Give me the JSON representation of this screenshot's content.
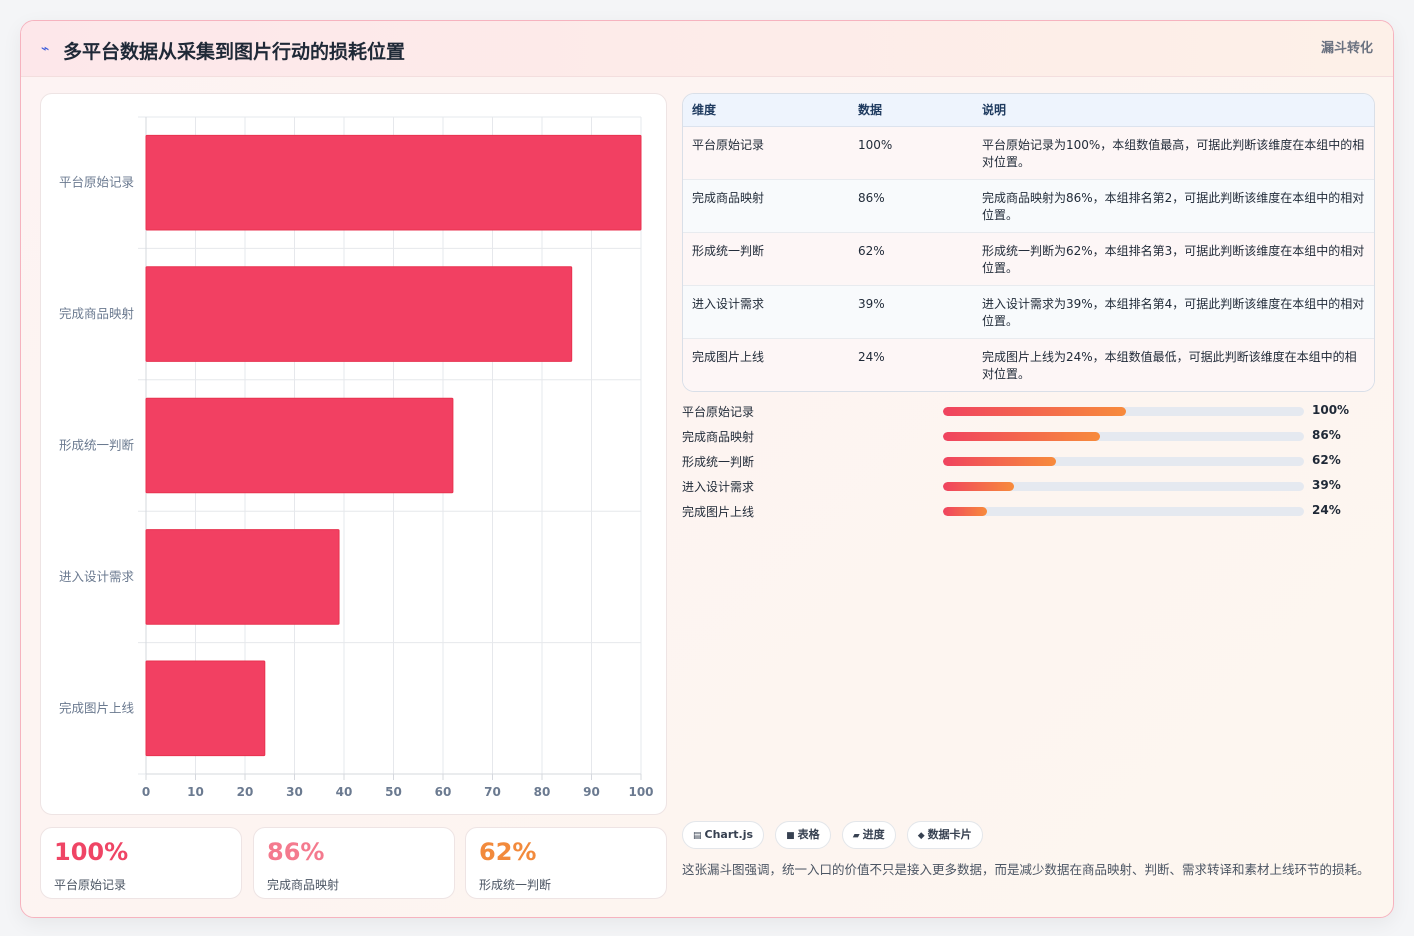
{
  "header": {
    "title": "多平台数据从采集到图片行动的损耗位置",
    "tag": "漏斗转化",
    "title_icon": "spark-icon"
  },
  "chart_data": {
    "type": "bar",
    "orientation": "horizontal",
    "categories": [
      "平台原始记录",
      "完成商品映射",
      "形成统一判断",
      "进入设计需求",
      "完成图片上线"
    ],
    "values": [
      100,
      86,
      62,
      39,
      24
    ],
    "xlim": [
      0,
      100
    ],
    "x_ticks": [
      "0",
      "10",
      "20",
      "30",
      "40",
      "50",
      "60",
      "70",
      "80",
      "90",
      "100"
    ],
    "grid": true,
    "legend": "none",
    "bar_color": "#f24062"
  },
  "stats": [
    {
      "value": "100%",
      "label": "平台原始记录",
      "color": "#ef4565"
    },
    {
      "value": "86%",
      "label": "完成商品映射",
      "color": "#f47a8e"
    },
    {
      "value": "62%",
      "label": "形成统一判断",
      "color": "#f28a3c"
    }
  ],
  "table": {
    "headers": [
      "维度",
      "数据",
      "说明"
    ],
    "rows": [
      [
        "平台原始记录",
        "100%",
        "平台原始记录为100%，本组数值最高，可据此判断该维度在本组中的相对位置。"
      ],
      [
        "完成商品映射",
        "86%",
        "完成商品映射为86%，本组排名第2，可据此判断该维度在本组中的相对位置。"
      ],
      [
        "形成统一判断",
        "62%",
        "形成统一判断为62%，本组排名第3，可据此判断该维度在本组中的相对位置。"
      ],
      [
        "进入设计需求",
        "39%",
        "进入设计需求为39%，本组排名第4，可据此判断该维度在本组中的相对位置。"
      ],
      [
        "完成图片上线",
        "24%",
        "完成图片上线为24%，本组数值最低，可据此判断该维度在本组中的相对位置。"
      ]
    ]
  },
  "progress": [
    {
      "label": "平台原始记录",
      "value": "100%",
      "fill": 0.506
    },
    {
      "label": "完成商品映射",
      "value": "86%",
      "fill": 0.435
    },
    {
      "label": "形成统一判断",
      "value": "62%",
      "fill": 0.314
    },
    {
      "label": "进入设计需求",
      "value": "39%",
      "fill": 0.197
    },
    {
      "label": "完成图片上线",
      "value": "24%",
      "fill": 0.122
    }
  ],
  "chips": [
    {
      "icon": "chart-icon",
      "glyph": "▤",
      "label": "Chart.js"
    },
    {
      "icon": "table-icon",
      "glyph": "■",
      "label": "表格"
    },
    {
      "icon": "progress-icon",
      "glyph": "▰",
      "label": "进度"
    },
    {
      "icon": "card-icon",
      "glyph": "◆",
      "label": "数据卡片"
    }
  ],
  "note": "这张漏斗图强调，统一入口的价值不只是接入更多数据，而是减少数据在商品映射、判断、需求转译和素材上线环节的损耗。"
}
